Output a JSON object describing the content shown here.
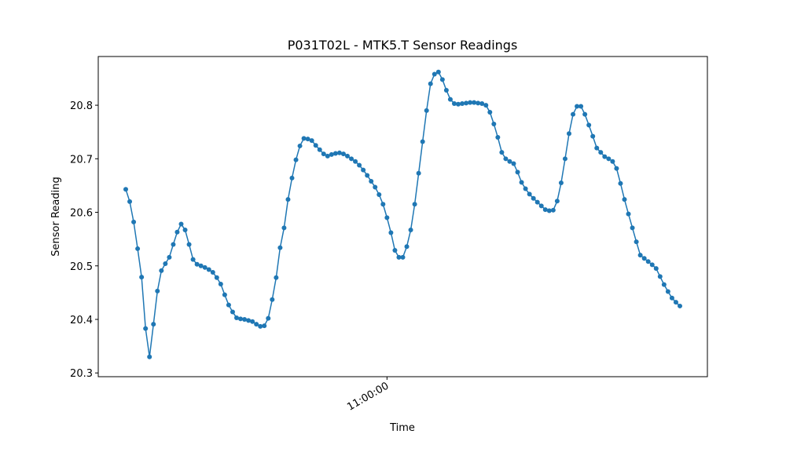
{
  "chart_data": {
    "type": "line",
    "title": "P031T02L - MTK5.T Sensor Readings",
    "xlabel": "Time",
    "ylabel": "Sensor Reading",
    "categories": [
      null,
      null,
      null,
      null,
      null,
      null,
      null,
      null,
      null,
      null,
      null,
      null,
      null,
      null,
      null,
      null,
      null,
      null,
      null,
      null,
      null,
      null,
      null,
      null,
      null,
      null,
      null,
      null,
      null,
      null,
      null,
      null,
      null,
      null,
      null,
      null,
      null,
      null,
      null,
      null,
      null,
      null,
      null,
      null,
      null,
      null,
      null,
      null,
      null,
      null,
      null,
      null,
      null,
      null,
      null,
      null,
      null,
      null,
      null,
      null,
      null,
      null,
      null,
      null,
      null,
      null,
      "11:00:00",
      null,
      null,
      null,
      null,
      null,
      null,
      null,
      null,
      null,
      null,
      null,
      null,
      null,
      null,
      null,
      null,
      null,
      null,
      null,
      null,
      null,
      null,
      null,
      null,
      null,
      null,
      null,
      null,
      null,
      null,
      null,
      null,
      null,
      null,
      null,
      null,
      null,
      null,
      null,
      null,
      null,
      null,
      null,
      null,
      null,
      null,
      null,
      null,
      null,
      null,
      null,
      null,
      null,
      null,
      null,
      null,
      null,
      null,
      null,
      null,
      null,
      null,
      null,
      null,
      null,
      null,
      null,
      null,
      null,
      null,
      null,
      null,
      null,
      null
    ],
    "values": [
      20.643,
      20.62,
      20.582,
      20.532,
      20.479,
      20.383,
      20.33,
      20.391,
      20.453,
      20.491,
      20.504,
      20.516,
      20.54,
      20.563,
      20.578,
      20.567,
      20.54,
      20.512,
      20.503,
      20.5,
      20.497,
      20.493,
      20.488,
      20.478,
      20.466,
      20.446,
      20.427,
      20.414,
      20.403,
      20.401,
      20.4,
      20.398,
      20.396,
      20.391,
      20.387,
      20.388,
      20.402,
      20.437,
      20.478,
      20.534,
      20.571,
      20.624,
      20.664,
      20.698,
      20.724,
      20.738,
      20.737,
      20.734,
      20.725,
      20.717,
      20.709,
      20.705,
      20.708,
      20.71,
      20.711,
      20.709,
      20.705,
      20.7,
      20.695,
      20.688,
      20.679,
      20.669,
      20.658,
      20.647,
      20.633,
      20.615,
      20.59,
      20.562,
      20.529,
      20.516,
      20.516,
      20.536,
      20.567,
      20.615,
      20.673,
      20.732,
      20.79,
      20.84,
      20.858,
      20.862,
      20.848,
      20.828,
      20.811,
      20.803,
      20.802,
      20.803,
      20.804,
      20.805,
      20.805,
      20.804,
      20.803,
      20.8,
      20.787,
      20.765,
      20.74,
      20.712,
      20.7,
      20.695,
      20.691,
      20.675,
      20.656,
      20.644,
      20.634,
      20.626,
      20.619,
      20.612,
      20.605,
      20.603,
      20.604,
      20.621,
      20.655,
      20.7,
      20.747,
      20.783,
      20.798,
      20.798,
      20.783,
      20.763,
      20.742,
      20.72,
      20.712,
      20.704,
      20.7,
      20.695,
      20.682,
      20.654,
      20.624,
      20.597,
      20.571,
      20.545,
      20.52,
      20.514,
      20.508,
      20.502,
      20.495,
      20.48,
      20.465,
      20.452,
      20.44,
      20.432,
      20.425
    ],
    "color": "#1f77b4",
    "marker": "o",
    "ylim": [
      20.293,
      20.891
    ],
    "yticks": [
      20.3,
      20.4,
      20.5,
      20.6,
      20.7,
      20.8
    ]
  }
}
